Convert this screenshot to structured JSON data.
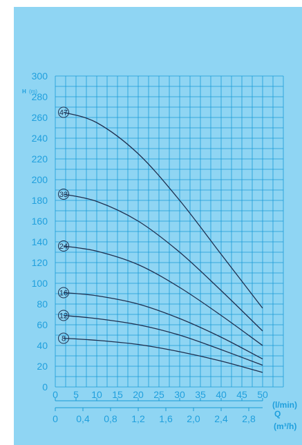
{
  "chart_data": {
    "type": "line",
    "ylabel_main": "H",
    "ylabel_unit": "(m)",
    "xlabel_lmin": "(l/min)",
    "xlabel_q": "Q",
    "xlabel_m3h": "(m³/h)",
    "ylim": [
      0,
      300
    ],
    "xlim": [
      0,
      55
    ],
    "y_ticks": [
      "0",
      "20",
      "40",
      "60",
      "80",
      "100",
      "120",
      "140",
      "160",
      "180",
      "200",
      "220",
      "240",
      "260",
      "280",
      "300"
    ],
    "x_ticks_lmin": [
      {
        "v": 0,
        "label": "0"
      },
      {
        "v": 5,
        "label": "5"
      },
      {
        "v": 10,
        "label": "10"
      },
      {
        "v": 15,
        "label": "15"
      },
      {
        "v": 20,
        "label": "20"
      },
      {
        "v": 25,
        "label": "25"
      },
      {
        "v": 30,
        "label": "30"
      },
      {
        "v": 35,
        "label": "35"
      },
      {
        "v": 40,
        "label": "40"
      },
      {
        "v": 45,
        "label": "45"
      },
      {
        "v": 50,
        "label": "50"
      }
    ],
    "x_ticks_m3h": [
      {
        "v": 0,
        "label": "0"
      },
      {
        "v": 6.667,
        "label": "0,4"
      },
      {
        "v": 13.333,
        "label": "0,8"
      },
      {
        "v": 20,
        "label": "1,2"
      },
      {
        "v": 26.667,
        "label": "1,6"
      },
      {
        "v": 33.333,
        "label": "2,0"
      },
      {
        "v": 40,
        "label": "2,4"
      },
      {
        "v": 46.667,
        "label": "2,8"
      }
    ],
    "grid": true,
    "colors": {
      "background": "#8fd5f3",
      "grid": "#1a9ad6",
      "axis_text": "#1f9fdd",
      "curve": "#1d2e4e"
    },
    "series": [
      {
        "name": "47",
        "x": [
          2,
          10,
          20,
          30,
          40,
          50
        ],
        "y": [
          265,
          255,
          225,
          180,
          128,
          76
        ]
      },
      {
        "name": "33",
        "x": [
          2,
          10,
          20,
          30,
          40,
          50
        ],
        "y": [
          186,
          179,
          160,
          130,
          93,
          54
        ]
      },
      {
        "name": "24",
        "x": [
          2,
          10,
          20,
          30,
          40,
          50
        ],
        "y": [
          136,
          131,
          118,
          96,
          69,
          40
        ]
      },
      {
        "name": "16",
        "x": [
          2,
          10,
          20,
          30,
          40,
          50
        ],
        "y": [
          91,
          88,
          80,
          66,
          48,
          27
        ]
      },
      {
        "name": "12",
        "x": [
          2,
          10,
          20,
          30,
          40,
          50
        ],
        "y": [
          69,
          66,
          60,
          50,
          36,
          21
        ]
      },
      {
        "name": "8",
        "x": [
          2,
          10,
          20,
          30,
          40,
          50
        ],
        "y": [
          47,
          45,
          41,
          34,
          25,
          14
        ]
      }
    ]
  }
}
